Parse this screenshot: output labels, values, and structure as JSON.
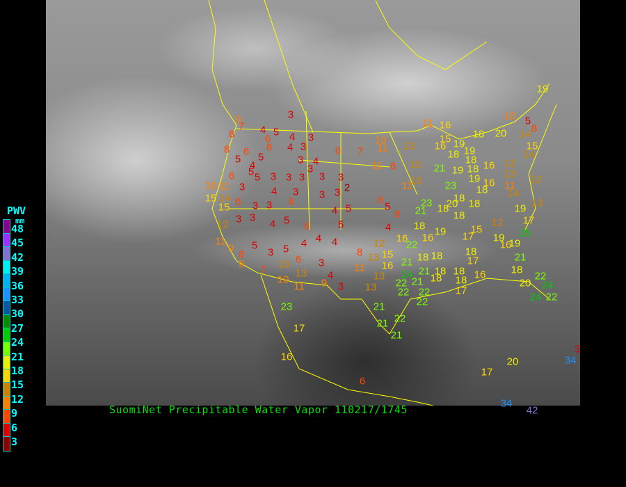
{
  "caption": "SuomiNet Precipitable Water Vapor 110217/1745",
  "legend": {
    "title": "PWV",
    "unit": "mm",
    "labels": [
      "48",
      "45",
      "42",
      "39",
      "36",
      "33",
      "30",
      "27",
      "24",
      "21",
      "18",
      "15",
      "12",
      "9",
      "6",
      "3"
    ],
    "colors": [
      "#8b008b",
      "#9b30ff",
      "#8470d0",
      "#00eeee",
      "#00b2ee",
      "#1e90ff",
      "#005a9c",
      "#008b00",
      "#00cd00",
      "#7cfc00",
      "#eeee00",
      "#ffd700",
      "#cd8500",
      "#ff8000",
      "#ff4500",
      "#dd0000",
      "#8b0000"
    ]
  },
  "map": {
    "border_color": "#ffff00",
    "stations": [
      3,
      4,
      5,
      4,
      3,
      9,
      7,
      8,
      8,
      6,
      5,
      5,
      4,
      5,
      5,
      6,
      3,
      3,
      3,
      3,
      3,
      2,
      6,
      6,
      4,
      3,
      4,
      3,
      3,
      4,
      3,
      6,
      10,
      11,
      3,
      4,
      3,
      15,
      14,
      6,
      15,
      3,
      3,
      6,
      3,
      3,
      4,
      5,
      3,
      3,
      4,
      5,
      6,
      5,
      12,
      11,
      9,
      5,
      3,
      5,
      4,
      4,
      6,
      9,
      7,
      13,
      6,
      3,
      13,
      4,
      10,
      11,
      9,
      10,
      11,
      7,
      11,
      8,
      11,
      16,
      10,
      5,
      8,
      13,
      15,
      18,
      20,
      14,
      16,
      19,
      18,
      19,
      15,
      14,
      18,
      13,
      21,
      19,
      18,
      16,
      12,
      19,
      13,
      12,
      11,
      13,
      23,
      16,
      11,
      18,
      14,
      6,
      5,
      8,
      23,
      21,
      18,
      20,
      18,
      18,
      18,
      19,
      13,
      17,
      4,
      18,
      19,
      12,
      15,
      16,
      22,
      16,
      17,
      19,
      16,
      19,
      25,
      12,
      8,
      13,
      15,
      16,
      21,
      18,
      18,
      18,
      17,
      21,
      11,
      21,
      18,
      18,
      16,
      18,
      13,
      22,
      24,
      22,
      21,
      18,
      18,
      20,
      24,
      22,
      22,
      24,
      22,
      13,
      17,
      22,
      23,
      21,
      21,
      22,
      21,
      17,
      16,
      6,
      17,
      20,
      34,
      3,
      19,
      42,
      34
    ]
  }
}
